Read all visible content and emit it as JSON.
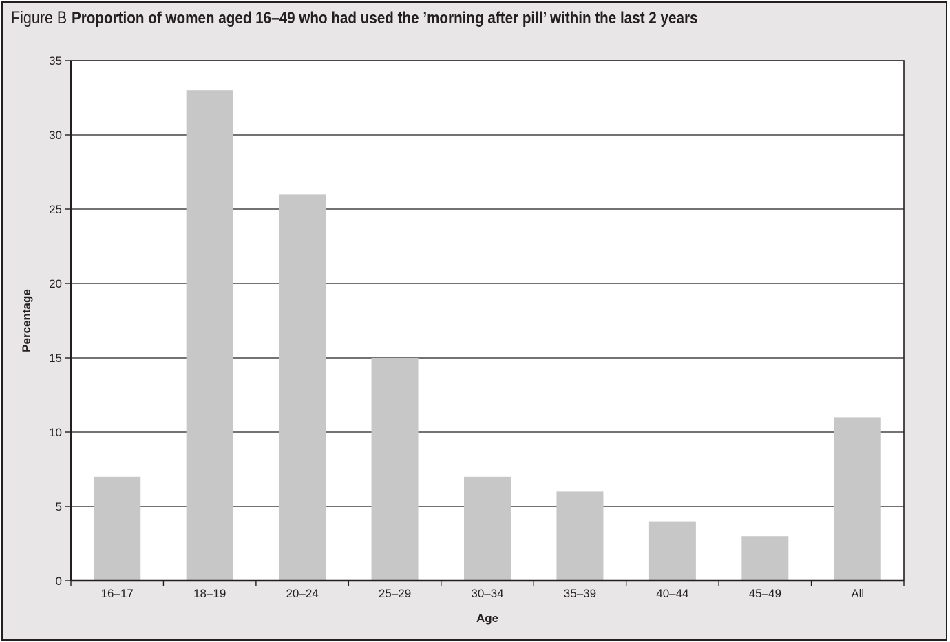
{
  "figure": {
    "label": "Figure B",
    "title": "Proportion of women aged 16–49 who had used the ’morning after pill’ within the last 2 years"
  },
  "colors": {
    "bar": "#c8c7c8",
    "frame_background": "#e8e6e7",
    "plot_background": "#ffffff",
    "ink": "#231f20"
  },
  "chart_data": {
    "type": "bar",
    "title": "Proportion of women aged 16–49 who had used the ’morning after pill’ within the last 2 years",
    "xlabel": "Age",
    "ylabel": "Percentage",
    "categories": [
      "16–17",
      "18–19",
      "20–24",
      "25–29",
      "30–34",
      "35–39",
      "40–44",
      "45–49",
      "All"
    ],
    "values": [
      7,
      33,
      26,
      15,
      7,
      6,
      4,
      3,
      11
    ],
    "ylim": [
      0,
      35
    ],
    "yticks": [
      0,
      5,
      10,
      15,
      20,
      25,
      30,
      35
    ],
    "grid": true,
    "legend": "none"
  }
}
